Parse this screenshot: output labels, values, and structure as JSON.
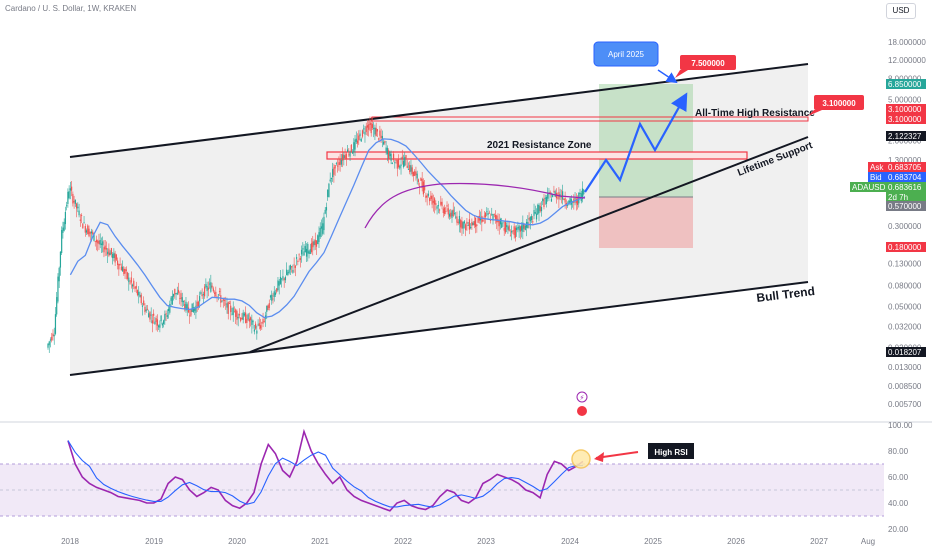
{
  "header": {
    "symbol_line": "Cardano / U. S. Dollar, 1W, KRAKEN",
    "currency_button": "USD"
  },
  "chart_data": [
    {
      "type": "line",
      "title": "",
      "price_axis": {
        "scale": "log",
        "tick_labels": [
          "18.000000",
          "12.000000",
          "8.000000",
          "5.000000",
          "2.000000",
          "1.300000",
          "0.800000",
          "0.500000",
          "0.300000",
          "0.130000",
          "0.080000",
          "0.050000",
          "0.032000",
          "0.020000",
          "0.013000",
          "0.008500",
          "0.005700"
        ]
      },
      "time_axis": {
        "tick_labels": [
          "2018",
          "2019",
          "2020",
          "2021",
          "2022",
          "2023",
          "2024",
          "2025",
          "2026",
          "2027",
          "Aug"
        ]
      },
      "series": [
        {
          "values": [
            0.02,
            0.03,
            0.25,
            0.7,
            0.45,
            0.3,
            0.25,
            0.2,
            0.18,
            0.15,
            0.12,
            0.09,
            0.07,
            0.05,
            0.04,
            0.035,
            0.04,
            0.07,
            0.06,
            0.045,
            0.05,
            0.07,
            0.08,
            0.065,
            0.05,
            0.045,
            0.04,
            0.038,
            0.03,
            0.035,
            0.06,
            0.08,
            0.1,
            0.12,
            0.16,
            0.18,
            0.2,
            0.3,
            0.9,
            1.2,
            1.5,
            1.7,
            2.2,
            2.9,
            2.5,
            2.0,
            1.4,
            1.2,
            1.3,
            1.0,
            0.8,
            0.6,
            0.5,
            0.45,
            0.4,
            0.36,
            0.3,
            0.32,
            0.34,
            0.38,
            0.36,
            0.32,
            0.27,
            0.26,
            0.3,
            0.35,
            0.45,
            0.55,
            0.62,
            0.6,
            0.5,
            0.52,
            0.68
          ]
        }
      ],
      "trend_lines": [
        "Lifetime Support",
        "Bull Trend"
      ],
      "resistance_zone_label": "2021 Resistance Zone",
      "ath_label": "All-Time High Resistance",
      "ath_price": "3.100000",
      "target_price": "7.500000",
      "target_date": "April 2025",
      "price_badges": [
        {
          "text": "6.850000",
          "color": "#26a69a"
        },
        {
          "text": "3.100000",
          "color": "#f23645"
        },
        {
          "text": "3.100000",
          "color": "#f23645"
        },
        {
          "text": "2.122327",
          "color": "#131722"
        },
        {
          "text": "0.683705",
          "prefix": "Ask",
          "color": "#f23645"
        },
        {
          "text": "0.683704",
          "prefix": "Bid",
          "color": "#2962ff"
        },
        {
          "text": "0.683616",
          "prefix": "ADAUSD",
          "color": "#4caf50"
        },
        {
          "text": "2d 7h",
          "color": "#4caf50"
        },
        {
          "text": "0.570000",
          "color": "#787b86"
        },
        {
          "text": "0.180000",
          "color": "#f23645"
        },
        {
          "text": "0.018207",
          "color": "#131722"
        }
      ]
    },
    {
      "type": "line",
      "title": "",
      "name": "RSI",
      "axis": {
        "tick_labels": [
          "100.00",
          "80.00",
          "60.00",
          "40.00",
          "20.00"
        ],
        "ylim": [
          20,
          100
        ]
      },
      "band": [
        30,
        70
      ],
      "values": [
        88,
        70,
        60,
        55,
        52,
        50,
        48,
        45,
        44,
        43,
        42,
        40,
        40,
        43,
        55,
        60,
        58,
        50,
        45,
        48,
        52,
        50,
        42,
        38,
        36,
        40,
        48,
        70,
        85,
        78,
        65,
        60,
        72,
        95,
        80,
        70,
        62,
        55,
        60,
        50,
        45,
        42,
        40,
        38,
        36,
        34,
        40,
        42,
        38,
        36,
        35,
        38,
        45,
        50,
        48,
        42,
        40,
        44,
        55,
        58,
        62,
        60,
        58,
        55,
        50,
        48,
        44,
        62,
        72,
        70,
        65,
        68,
        72
      ],
      "annotation": "High RSI"
    }
  ]
}
